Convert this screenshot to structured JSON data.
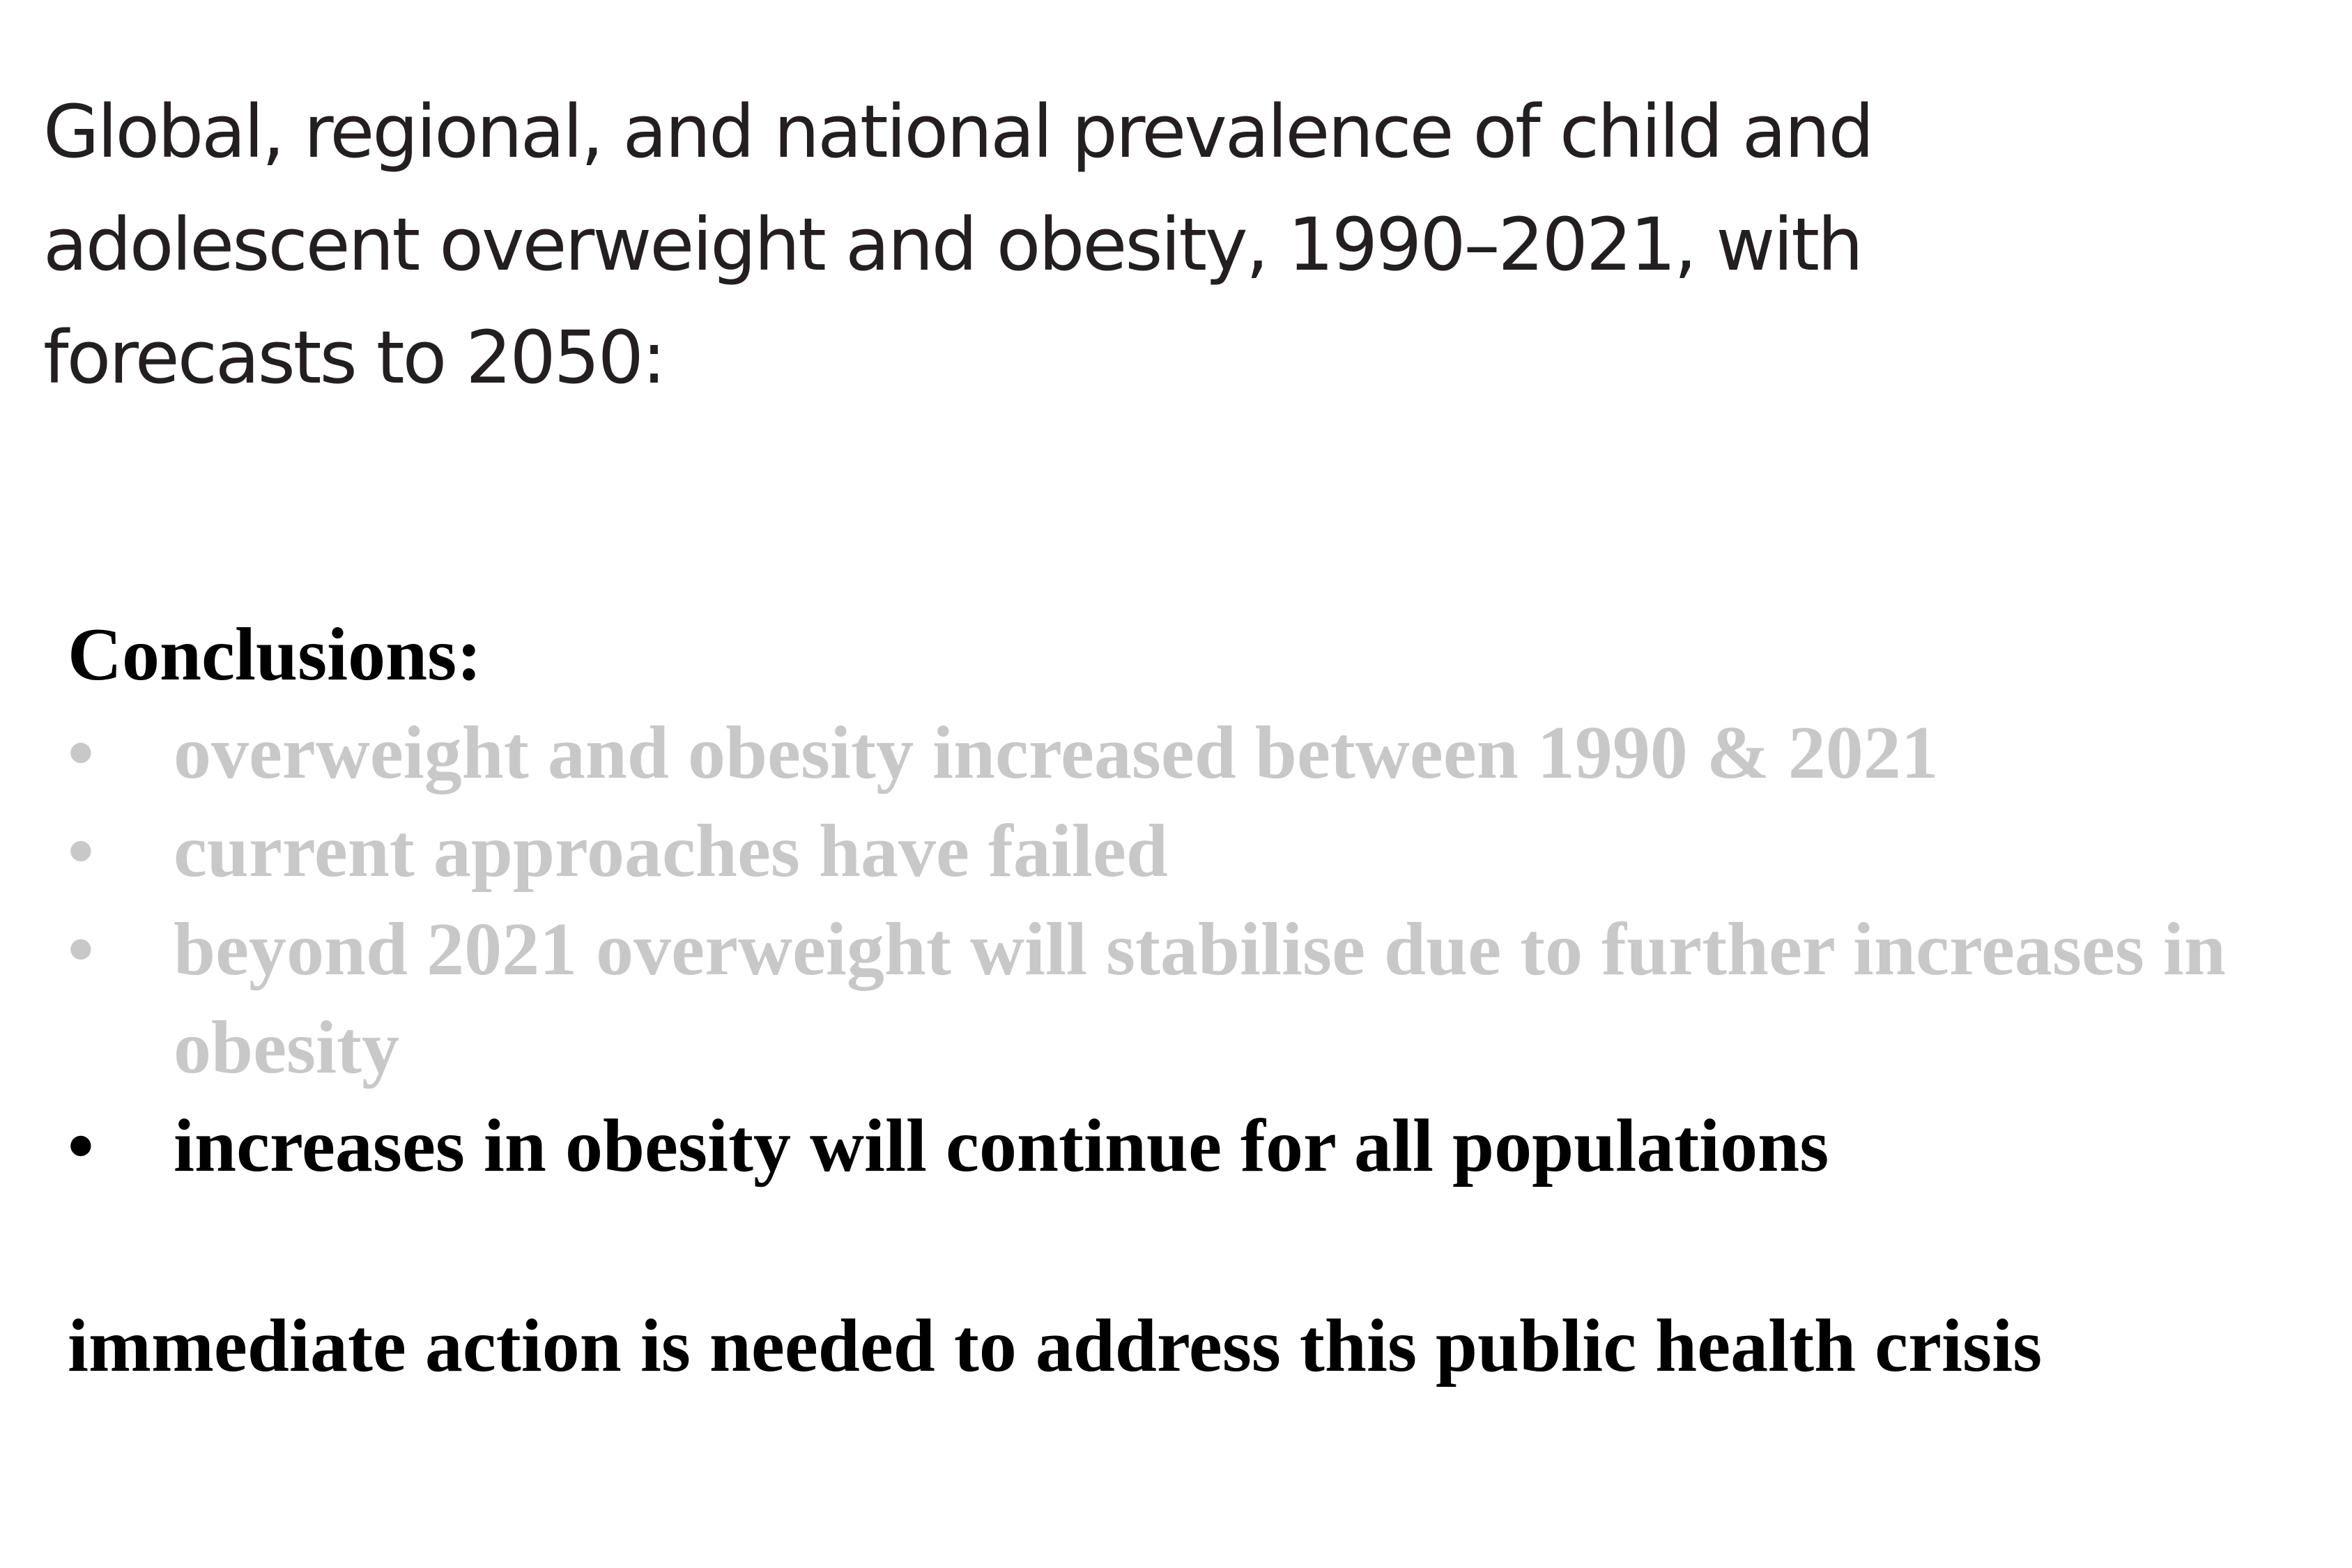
{
  "title": "Global, regional, and national prevalence of child and adolescent overweight and obesity, 1990–2021, with forecasts to 2050:",
  "conclusions": {
    "heading": "Conclusions:",
    "bullet_symbol": "•",
    "items": [
      {
        "text": "overweight and obesity increased between 1990 & 2021",
        "state": "dimmed"
      },
      {
        "text": "current approaches have failed",
        "state": "dimmed"
      },
      {
        "text": "beyond 2021 overweight will stabilise due to further increases in obesity",
        "state": "dimmed"
      },
      {
        "text": "increases in obesity will continue for all populations",
        "state": "highlighted"
      }
    ]
  },
  "final_statement": "immediate action is needed to address this public health crisis",
  "colors": {
    "title_text": "#231f20",
    "dimmed_text": "#c8c8c8",
    "highlighted_text": "#000000",
    "background": "#ffffff"
  }
}
